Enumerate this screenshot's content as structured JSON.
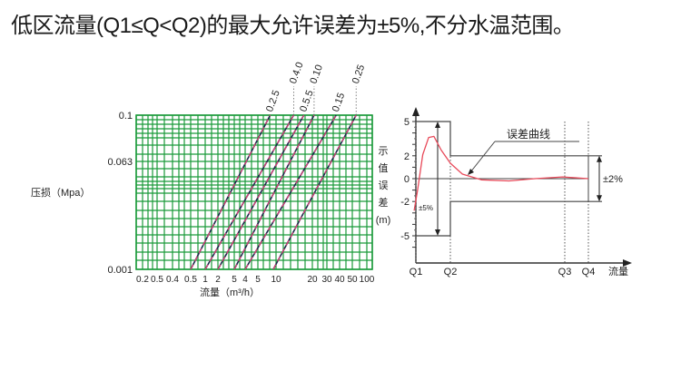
{
  "title": "低区流量(Q1≤Q<Q2)的最大允许误差为±5%,不分水温范围。",
  "chart_data": [
    {
      "type": "line",
      "ylabel": "压损（Mpa）",
      "xlabel": "流量（m³/h）",
      "y_ticks": [
        "0.1",
        "0.063",
        "0.001"
      ],
      "x_ticks": [
        "0.2",
        "0.5",
        "0.4",
        "0.5",
        "1",
        "2",
        "5",
        "4",
        "5",
        "10",
        "20",
        "30",
        "40",
        "50",
        "100"
      ],
      "grid": true,
      "grid_color": "#1a9a3a",
      "line_colors": [
        "#e0407a",
        "#1a2a4a"
      ],
      "series": [
        {
          "name": "0.2.5",
          "start_flow": 0.5,
          "end_flow": 8
        },
        {
          "name": "0.4.0",
          "start_flow": 1,
          "end_flow": 14
        },
        {
          "name": "0.5.5",
          "start_flow": 2,
          "end_flow": 17
        },
        {
          "name": "0.10",
          "start_flow": 3,
          "end_flow": 21
        },
        {
          "name": "0.15",
          "start_flow": 4,
          "end_flow": 37
        },
        {
          "name": "0.25",
          "start_flow": 9,
          "end_flow": 60
        }
      ]
    },
    {
      "type": "line",
      "ylabel_chars": [
        "示",
        "值",
        "误",
        "差",
        "(m)"
      ],
      "xlabel": "流量",
      "y_ticks": [
        5,
        2,
        0,
        -2,
        -5
      ],
      "x_ticks": [
        "Q1",
        "Q2",
        "Q3",
        "Q4"
      ],
      "curve_label": "误差曲线",
      "low_zone_label": "±5%",
      "high_zone_label": "±2%",
      "low_zone_limit": 5,
      "high_zone_limit": 2,
      "curve_color": "#e84a5a",
      "curve": [
        [
          -0.01,
          -2.8
        ],
        [
          0.01,
          -1
        ],
        [
          0.04,
          2.1
        ],
        [
          0.074,
          3.6
        ],
        [
          0.105,
          3.7
        ],
        [
          0.147,
          2.5
        ],
        [
          0.2,
          1.35
        ],
        [
          0.27,
          0.4
        ],
        [
          0.38,
          -0.1
        ],
        [
          0.54,
          -0.2
        ],
        [
          0.69,
          0
        ],
        [
          0.85,
          0.15
        ],
        [
          1.0,
          0
        ]
      ]
    }
  ]
}
